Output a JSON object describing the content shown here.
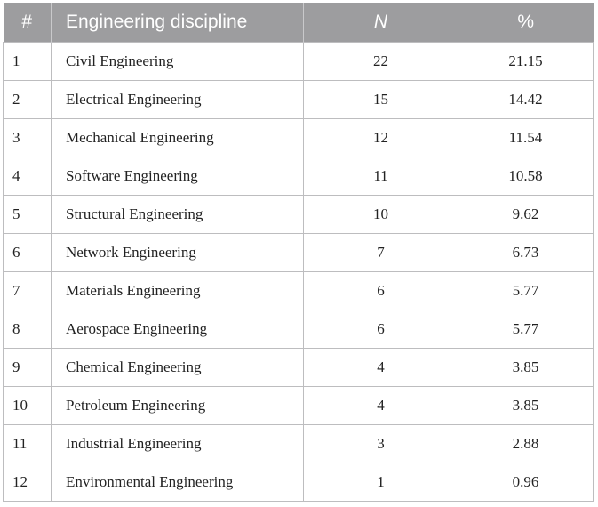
{
  "table": {
    "headers": {
      "num": "#",
      "discipline": "Engineering discipline",
      "n": "N",
      "pct": "%"
    },
    "rows": [
      {
        "num": "1",
        "discipline": "Civil Engineering",
        "n": "22",
        "pct": "21.15"
      },
      {
        "num": "2",
        "discipline": "Electrical Engineering",
        "n": "15",
        "pct": "14.42"
      },
      {
        "num": "3",
        "discipline": "Mechanical Engineering",
        "n": "12",
        "pct": "11.54"
      },
      {
        "num": "4",
        "discipline": "Software Engineering",
        "n": "11",
        "pct": "10.58"
      },
      {
        "num": "5",
        "discipline": "Structural Engineering",
        "n": "10",
        "pct": "9.62"
      },
      {
        "num": "6",
        "discipline": "Network Engineering",
        "n": "7",
        "pct": "6.73"
      },
      {
        "num": "7",
        "discipline": "Materials Engineering",
        "n": "6",
        "pct": "5.77"
      },
      {
        "num": "8",
        "discipline": "Aerospace Engineering",
        "n": "6",
        "pct": "5.77"
      },
      {
        "num": "9",
        "discipline": "Chemical Engineering",
        "n": "4",
        "pct": "3.85"
      },
      {
        "num": "10",
        "discipline": "Petroleum Engineering",
        "n": "4",
        "pct": "3.85"
      },
      {
        "num": "11",
        "discipline": "Industrial Engineering",
        "n": "3",
        "pct": "2.88"
      },
      {
        "num": "12",
        "discipline": "Environmental Engineering",
        "n": "1",
        "pct": "0.96"
      }
    ]
  },
  "colors": {
    "header_bg": "#9d9d9f",
    "header_text": "#ffffff",
    "grid": "#bdbdbf"
  }
}
